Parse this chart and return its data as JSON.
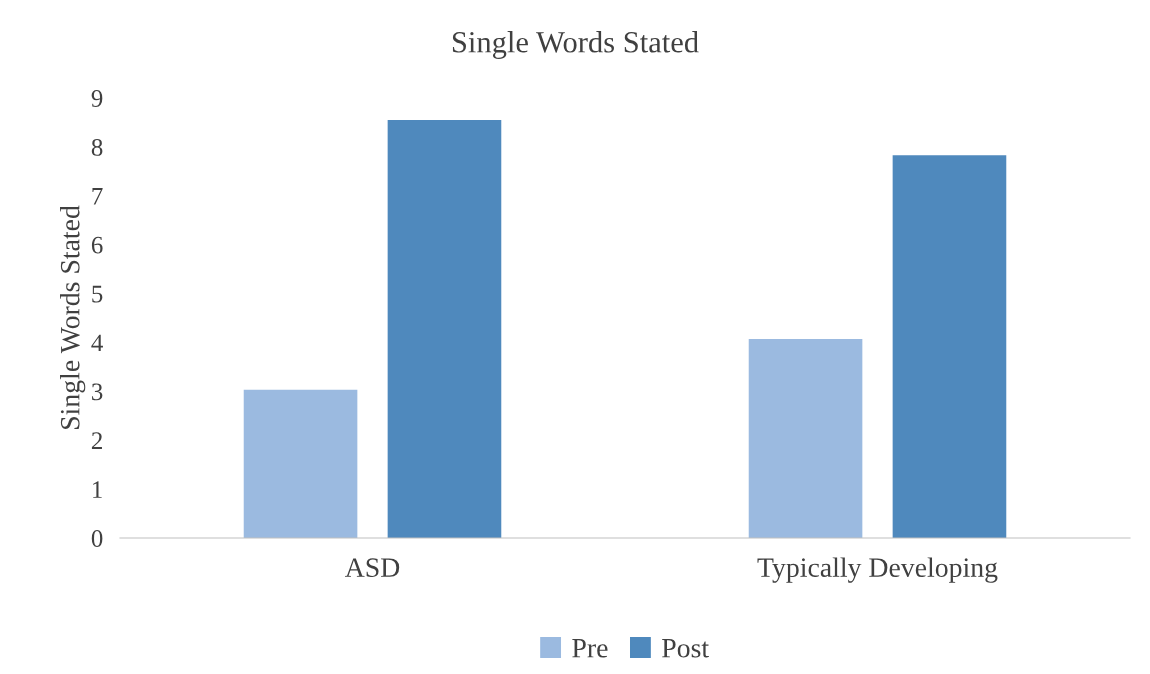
{
  "chart_data": {
    "type": "bar",
    "title": "Single Words Stated",
    "ylabel": "Single Words Stated",
    "categories": [
      "ASD",
      "Typically Developing"
    ],
    "series": [
      {
        "name": "Pre",
        "color": "#9bbae0",
        "values": [
          3.03,
          4.07
        ]
      },
      {
        "name": "Post",
        "color": "#4f89bd",
        "values": [
          8.55,
          7.83
        ]
      }
    ],
    "ylim": [
      0,
      9
    ],
    "yticks": [
      0,
      1,
      2,
      3,
      4,
      5,
      6,
      7,
      8,
      9
    ],
    "grid": false,
    "legend": "bottom"
  }
}
